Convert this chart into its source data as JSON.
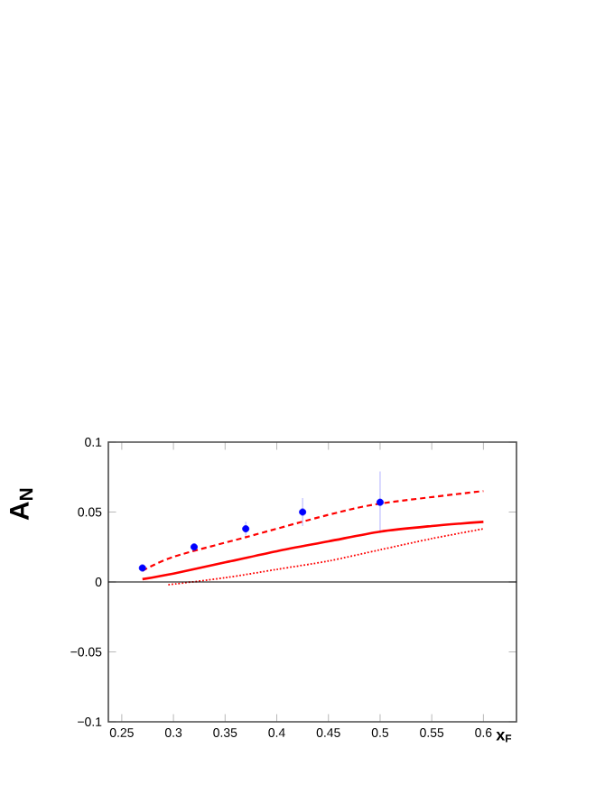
{
  "chart_data": {
    "type": "line",
    "xlabel": "x$_{F}$",
    "ylabel": "A$_{N}$",
    "xlim": [
      0.237,
      0.632
    ],
    "ylim": [
      -0.1,
      0.1
    ],
    "xticks": [
      0.25,
      0.3,
      0.35,
      0.4,
      0.45,
      0.5,
      0.55,
      0.6
    ],
    "yticks": [
      {
        "value": -0.1,
        "label": "−0.1"
      },
      {
        "value": -0.05,
        "label": "−0.05"
      },
      0,
      0.05,
      0.1
    ],
    "marker": "none",
    "ref_lines": [
      {
        "axis": "y",
        "value": 0,
        "color": "#000000"
      }
    ],
    "series": [
      {
        "type": "scatter",
        "color": "#0000ff",
        "marker": "circle",
        "x": [
          0.27,
          0.32,
          0.37,
          0.425,
          0.5
        ],
        "values": [
          0.01,
          0.025,
          0.038,
          0.05,
          0.057
        ],
        "errors": [
          null,
          null,
          0.005,
          0.01,
          0.022
        ]
      },
      {
        "color": "#ff0000",
        "line_style": "dashed",
        "x": [
          0.27,
          0.3,
          0.37,
          0.45,
          0.5,
          0.6
        ],
        "values": [
          0.008,
          0.018,
          0.032,
          0.048,
          0.056,
          0.065
        ]
      },
      {
        "color": "#ff0000",
        "line_style": "solid",
        "x": [
          0.27,
          0.3,
          0.35,
          0.4,
          0.45,
          0.5,
          0.55,
          0.6
        ],
        "values": [
          0.002,
          0.006,
          0.014,
          0.022,
          0.029,
          0.036,
          0.04,
          0.043
        ]
      },
      {
        "color": "#ff0000",
        "line_style": "dotted",
        "x": [
          0.295,
          0.35,
          0.4,
          0.45,
          0.5,
          0.55,
          0.6
        ],
        "values": [
          -0.002,
          0.003,
          0.009,
          0.015,
          0.023,
          0.031,
          0.038
        ]
      }
    ]
  }
}
